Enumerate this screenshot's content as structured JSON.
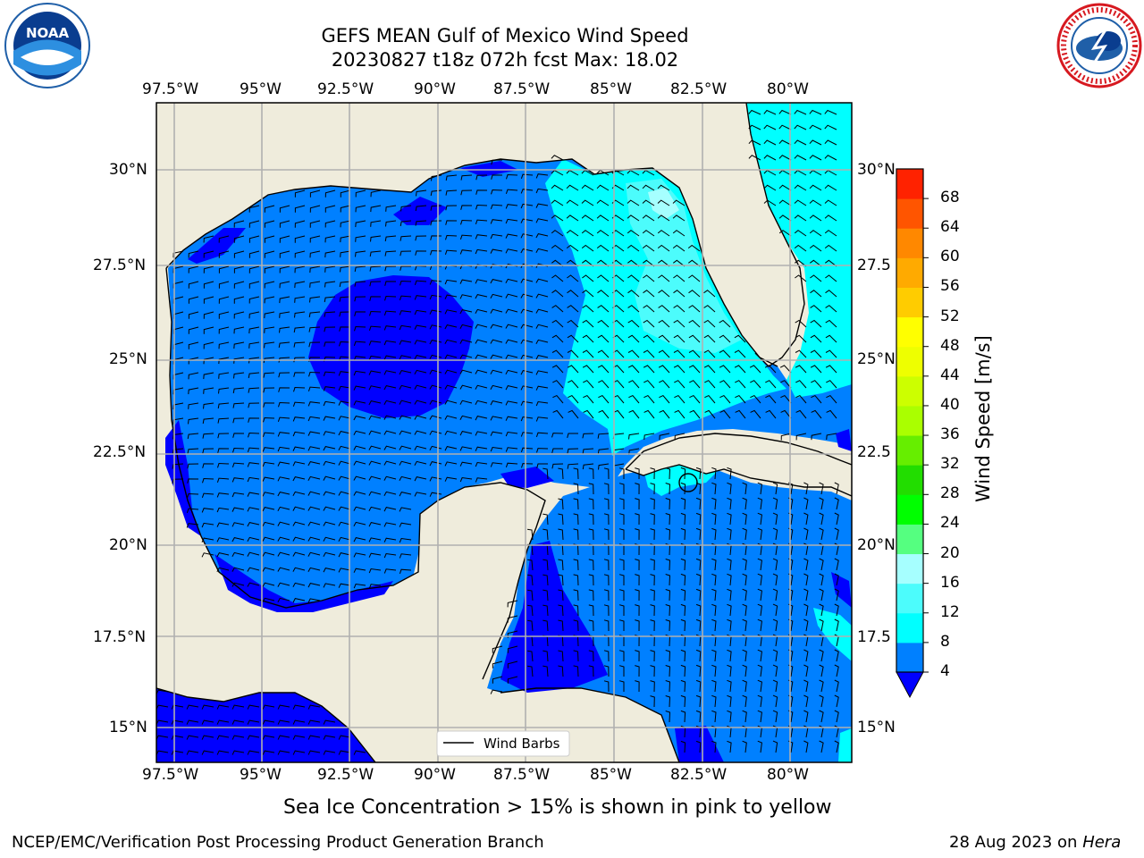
{
  "header": {
    "title_line1": "GEFS MEAN Gulf of Mexico Wind Speed",
    "title_line2": "20230827 t18z 072h fcst   Max: 18.02"
  },
  "logos": {
    "left": {
      "name": "noaa-logo",
      "text": "NOAA",
      "color": "#1f5fa8"
    },
    "right": {
      "name": "nws-logo",
      "text": "NATIONAL WEATHER SERVICE",
      "color": "#d71920"
    }
  },
  "map": {
    "lon_ticks": [
      "97.5°W",
      "95°W",
      "92.5°W",
      "90°W",
      "87.5°W",
      "85°W",
      "82.5°W",
      "80°W"
    ],
    "lat_ticks_left": [
      "30°N",
      "27.5°N",
      "25°N",
      "22.5°N",
      "20°N",
      "17.5°N",
      "15°N"
    ],
    "lat_ticks_right": [
      "30°N",
      "27.5",
      "25°N",
      "22.5",
      "20°N",
      "17.5",
      "15°N"
    ],
    "legend_label": "Wind Barbs",
    "land_color": "#efecdc",
    "ocean_color": "#0080ff"
  },
  "colorbar": {
    "title": "Wind Speed [m/s]",
    "levels": [
      "4",
      "8",
      "12",
      "16",
      "20",
      "24",
      "28",
      "32",
      "36",
      "40",
      "44",
      "48",
      "52",
      "56",
      "60",
      "64",
      "68"
    ],
    "colors": [
      "#0080ff",
      "#00ffff",
      "#4cfcfc",
      "#a6ffff",
      "#55ff80",
      "#00ff00",
      "#22dd00",
      "#66ee00",
      "#aaff00",
      "#ccff00",
      "#eeff00",
      "#ffff00",
      "#ffcc00",
      "#ffaa00",
      "#ff8800",
      "#ff5500",
      "#ff2200"
    ],
    "under_color": "#0000ff"
  },
  "notes": {
    "sea_ice": "Sea Ice Concentration > 15% is shown in pink to yellow"
  },
  "footer": {
    "left": "NCEP/EMC/Verification Post Processing Product Generation Branch",
    "date": "28 Aug 2023 on",
    "host": "Hera"
  }
}
